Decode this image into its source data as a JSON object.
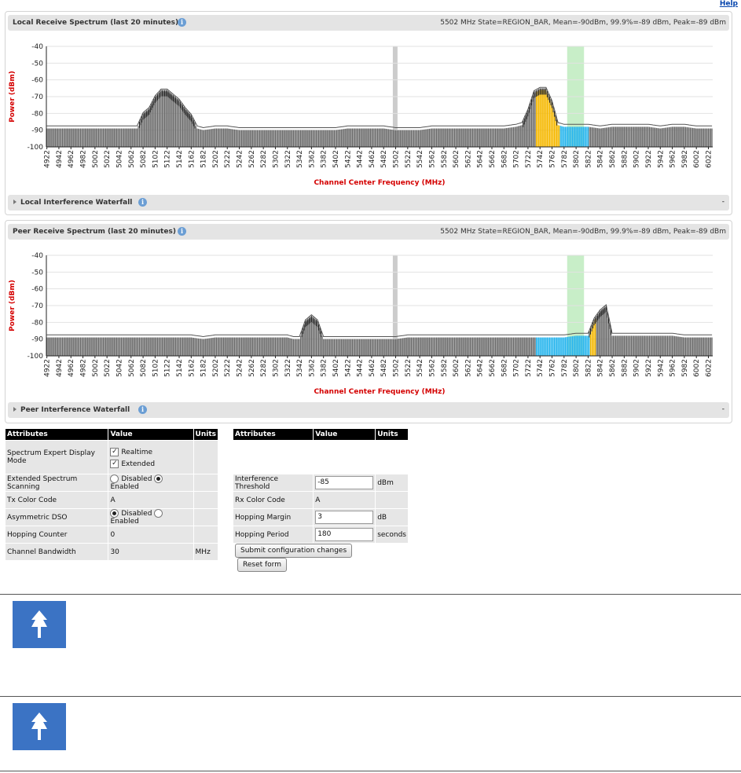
{
  "help_link": "Help",
  "local": {
    "title": "Local Receive Spectrum (last 20 minutes)",
    "status": "5502 MHz State=REGION_BAR, Mean=-90dBm, 99.9%=-89 dBm, Peak=-89 dBm",
    "waterfall_label": "Local Interference Waterfall",
    "waterfall_value": "-"
  },
  "peer": {
    "title": "Peer Receive Spectrum (last 20 minutes)",
    "status": "5502 MHz State=REGION_BAR, Mean=-90dBm, 99.9%=-89 dBm, Peak=-89 dBm",
    "waterfall_label": "Peer Interference Waterfall",
    "waterfall_value": "-"
  },
  "colors": {
    "bar_normal": "#6e6e6e",
    "bar_interference": "#f5b800",
    "bar_current": "#29b6ee",
    "current_highlight": "#c8eec8",
    "barred_region": "#cccccc",
    "axis_title": "#d40000",
    "note_icon": "#3b73c4"
  },
  "chart_data": [
    {
      "type": "bar",
      "title": "Local Receive Spectrum (last 20 minutes)",
      "xlabel": "Channel Center Frequency (MHz)",
      "ylabel": "Power (dBm)",
      "ylim": [
        -100,
        -40
      ],
      "yticks": [
        -40,
        -50,
        -60,
        -70,
        -80,
        -90,
        -100
      ],
      "x_range_mhz": [
        4922,
        6030
      ],
      "x_tick_labels": [
        "4922",
        "4942",
        "4962",
        "4982",
        "5002",
        "5022",
        "5042",
        "5062",
        "5082",
        "5102",
        "5122",
        "5142",
        "5162",
        "5182",
        "5202",
        "5222",
        "5242",
        "5262",
        "5282",
        "5302",
        "5322",
        "5342",
        "5362",
        "5382",
        "5402",
        "5422",
        "5442",
        "5462",
        "5482",
        "5502",
        "5522",
        "5542",
        "5562",
        "5582",
        "5602",
        "5622",
        "5642",
        "5662",
        "5682",
        "5702",
        "5722",
        "5742",
        "5762",
        "5782",
        "5802",
        "5822",
        "5842",
        "5862",
        "5882",
        "5902",
        "5922",
        "5942",
        "5962",
        "5982",
        "6002",
        "6022"
      ],
      "barred_channel_mhz": 5502,
      "current_channel_mhz": [
        5802,
        5822
      ],
      "interference_range_mhz": [
        5736,
        5776
      ],
      "current_range_mhz": [
        5776,
        5824
      ],
      "series": [
        {
          "name": "",
          "points": [
            [
              4922,
              -89
            ],
            [
              4942,
              -89
            ],
            [
              4962,
              -89
            ],
            [
              4982,
              -89
            ],
            [
              5002,
              -89
            ],
            [
              5022,
              -89
            ],
            [
              5042,
              -89
            ],
            [
              5062,
              -89
            ],
            [
              5072,
              -89
            ],
            [
              5082,
              -81
            ],
            [
              5092,
              -78
            ],
            [
              5102,
              -71
            ],
            [
              5112,
              -67
            ],
            [
              5122,
              -67
            ],
            [
              5132,
              -70
            ],
            [
              5142,
              -73
            ],
            [
              5152,
              -78
            ],
            [
              5162,
              -82
            ],
            [
              5172,
              -89
            ],
            [
              5182,
              -90
            ],
            [
              5202,
              -89
            ],
            [
              5222,
              -89
            ],
            [
              5242,
              -90
            ],
            [
              5262,
              -90
            ],
            [
              5282,
              -90
            ],
            [
              5302,
              -90
            ],
            [
              5322,
              -90
            ],
            [
              5342,
              -90
            ],
            [
              5362,
              -90
            ],
            [
              5382,
              -90
            ],
            [
              5402,
              -90
            ],
            [
              5422,
              -89
            ],
            [
              5442,
              -89
            ],
            [
              5462,
              -89
            ],
            [
              5482,
              -89
            ],
            [
              5502,
              -90
            ],
            [
              5522,
              -90
            ],
            [
              5542,
              -90
            ],
            [
              5562,
              -89
            ],
            [
              5582,
              -89
            ],
            [
              5602,
              -89
            ],
            [
              5622,
              -89
            ],
            [
              5642,
              -89
            ],
            [
              5662,
              -89
            ],
            [
              5682,
              -89
            ],
            [
              5702,
              -88
            ],
            [
              5712,
              -87
            ],
            [
              5722,
              -79
            ],
            [
              5732,
              -68
            ],
            [
              5742,
              -66
            ],
            [
              5752,
              -66
            ],
            [
              5762,
              -74
            ],
            [
              5772,
              -87
            ],
            [
              5782,
              -88
            ],
            [
              5802,
              -88
            ],
            [
              5822,
              -88
            ],
            [
              5842,
              -89
            ],
            [
              5862,
              -88
            ],
            [
              5882,
              -88
            ],
            [
              5902,
              -88
            ],
            [
              5922,
              -88
            ],
            [
              5942,
              -89
            ],
            [
              5962,
              -88
            ],
            [
              5982,
              -88
            ],
            [
              6002,
              -89
            ],
            [
              6022,
              -89
            ]
          ]
        }
      ]
    },
    {
      "type": "bar",
      "title": "Peer Receive Spectrum (last 20 minutes)",
      "xlabel": "Channel Center Frequency (MHz)",
      "ylabel": "Power (dBm)",
      "ylim": [
        -100,
        -40
      ],
      "yticks": [
        -40,
        -50,
        -60,
        -70,
        -80,
        -90,
        -100
      ],
      "x_range_mhz": [
        4922,
        6030
      ],
      "x_tick_labels": [
        "4922",
        "4942",
        "4962",
        "4982",
        "5002",
        "5022",
        "5042",
        "5062",
        "5082",
        "5102",
        "5122",
        "5142",
        "5162",
        "5182",
        "5202",
        "5222",
        "5242",
        "5262",
        "5282",
        "5302",
        "5322",
        "5342",
        "5362",
        "5382",
        "5402",
        "5422",
        "5442",
        "5462",
        "5482",
        "5502",
        "5522",
        "5542",
        "5562",
        "5582",
        "5602",
        "5622",
        "5642",
        "5662",
        "5682",
        "5702",
        "5722",
        "5742",
        "5762",
        "5782",
        "5802",
        "5822",
        "5842",
        "5862",
        "5882",
        "5902",
        "5922",
        "5942",
        "5962",
        "5982",
        "6002",
        "6022"
      ],
      "barred_channel_mhz": 5502,
      "current_channel_mhz": [
        5802,
        5822
      ],
      "interference_range_mhz": [
        5826,
        5836
      ],
      "current_range_mhz": [
        5736,
        5826
      ],
      "series": [
        {
          "name": "",
          "points": [
            [
              4922,
              -89
            ],
            [
              4942,
              -89
            ],
            [
              4962,
              -89
            ],
            [
              4982,
              -89
            ],
            [
              5002,
              -89
            ],
            [
              5022,
              -89
            ],
            [
              5042,
              -89
            ],
            [
              5062,
              -89
            ],
            [
              5082,
              -89
            ],
            [
              5102,
              -89
            ],
            [
              5122,
              -89
            ],
            [
              5142,
              -89
            ],
            [
              5162,
              -89
            ],
            [
              5182,
              -90
            ],
            [
              5202,
              -89
            ],
            [
              5222,
              -89
            ],
            [
              5242,
              -89
            ],
            [
              5262,
              -89
            ],
            [
              5282,
              -89
            ],
            [
              5302,
              -89
            ],
            [
              5322,
              -89
            ],
            [
              5332,
              -90
            ],
            [
              5342,
              -90
            ],
            [
              5352,
              -80
            ],
            [
              5362,
              -77
            ],
            [
              5372,
              -80
            ],
            [
              5382,
              -90
            ],
            [
              5402,
              -90
            ],
            [
              5422,
              -90
            ],
            [
              5442,
              -90
            ],
            [
              5462,
              -90
            ],
            [
              5482,
              -90
            ],
            [
              5502,
              -90
            ],
            [
              5522,
              -89
            ],
            [
              5542,
              -89
            ],
            [
              5562,
              -89
            ],
            [
              5582,
              -89
            ],
            [
              5602,
              -89
            ],
            [
              5622,
              -89
            ],
            [
              5642,
              -89
            ],
            [
              5662,
              -89
            ],
            [
              5682,
              -89
            ],
            [
              5702,
              -89
            ],
            [
              5722,
              -89
            ],
            [
              5742,
              -89
            ],
            [
              5762,
              -89
            ],
            [
              5782,
              -89
            ],
            [
              5802,
              -88
            ],
            [
              5822,
              -88
            ],
            [
              5832,
              -79
            ],
            [
              5842,
              -74
            ],
            [
              5852,
              -71
            ],
            [
              5862,
              -88
            ],
            [
              5882,
              -88
            ],
            [
              5902,
              -88
            ],
            [
              5922,
              -88
            ],
            [
              5942,
              -88
            ],
            [
              5962,
              -88
            ],
            [
              5982,
              -89
            ],
            [
              6002,
              -89
            ],
            [
              6022,
              -89
            ]
          ]
        }
      ]
    }
  ],
  "table_left": {
    "headers": [
      "Attributes",
      "Value",
      "Units"
    ],
    "spectrum_expert_display_mode": "Spectrum Expert Display Mode",
    "realtime": "Realtime",
    "extended": "Extended",
    "extended_spectrum_scanning": "Extended Spectrum Scanning",
    "disabled": "Disabled",
    "enabled": "Enabled",
    "tx_color_code": "Tx Color Code",
    "tx_color_code_value": "A",
    "asymmetric_dso": "Asymmetric DSO",
    "hopping_counter": "Hopping Counter",
    "hopping_counter_value": "0",
    "channel_bandwidth": "Channel Bandwidth",
    "channel_bandwidth_value": "30",
    "channel_bandwidth_units": "MHz"
  },
  "table_right": {
    "headers": [
      "Attributes",
      "Value",
      "Units"
    ],
    "interference_threshold": "Interference Threshold",
    "interference_threshold_value": "-85",
    "interference_threshold_units": "dBm",
    "rx_color_code": "Rx Color Code",
    "rx_color_code_value": "A",
    "hopping_margin": "Hopping Margin",
    "hopping_margin_value": "3",
    "hopping_margin_units": "dB",
    "hopping_period": "Hopping Period",
    "hopping_period_value": "180",
    "hopping_period_units": "seconds",
    "submit_button": "Submit configuration changes",
    "reset_button": "Reset form"
  }
}
